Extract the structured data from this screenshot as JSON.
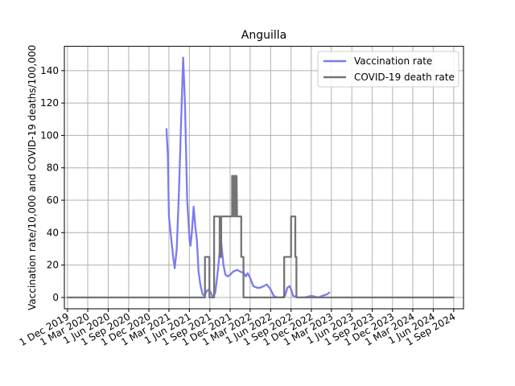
{
  "chart_data": {
    "type": "line",
    "title": "Anguilla",
    "xlabel": "",
    "ylabel": "Vaccination rate/10,000 and COVID-19 deaths/100,000",
    "xlim": [
      "2019-11-17",
      "2024-10-15"
    ],
    "ylim": [
      -7,
      155
    ],
    "grid": true,
    "legend_position": "top-right",
    "x_ticks": [
      "2019-12-01",
      "2020-03-01",
      "2020-06-01",
      "2020-09-01",
      "2020-12-01",
      "2021-03-01",
      "2021-06-01",
      "2021-09-01",
      "2021-12-01",
      "2022-03-01",
      "2022-06-01",
      "2022-09-01",
      "2022-12-01",
      "2023-03-01",
      "2023-06-01",
      "2023-09-01",
      "2023-12-01",
      "2024-03-01",
      "2024-06-01",
      "2024-09-01"
    ],
    "x_tick_labels": [
      "1 Dec 2019",
      "1 Mar 2020",
      "1 Jun 2020",
      "1 Sep 2020",
      "1 Dec 2020",
      "1 Mar 2021",
      "1 Jun 2021",
      "1 Sep 2021",
      "1 Dec 2021",
      "1 Mar 2022",
      "1 Jun 2022",
      "1 Sep 2022",
      "1 Dec 2022",
      "1 Mar 2023",
      "1 Jun 2023",
      "1 Sep 2023",
      "1 Dec 2023",
      "1 Mar 2024",
      "1 Jun 2024",
      "1 Sep 2024"
    ],
    "y_ticks": [
      0,
      20,
      40,
      60,
      80,
      100,
      120,
      140
    ],
    "series": [
      {
        "name": "Vaccination rate",
        "color": "#7b7bf0",
        "points": [
          [
            "2021-02-18",
            104
          ],
          [
            "2021-02-24",
            88
          ],
          [
            "2021-03-01",
            50
          ],
          [
            "2021-03-10",
            38
          ],
          [
            "2021-03-20",
            25
          ],
          [
            "2021-03-27",
            18
          ],
          [
            "2021-04-05",
            30
          ],
          [
            "2021-04-15",
            65
          ],
          [
            "2021-04-25",
            110
          ],
          [
            "2021-05-04",
            148
          ],
          [
            "2021-05-12",
            120
          ],
          [
            "2021-05-22",
            60
          ],
          [
            "2021-06-02",
            35
          ],
          [
            "2021-06-06",
            32
          ],
          [
            "2021-06-12",
            40
          ],
          [
            "2021-06-20",
            56
          ],
          [
            "2021-06-28",
            43
          ],
          [
            "2021-07-05",
            35
          ],
          [
            "2021-07-12",
            16
          ],
          [
            "2021-07-20",
            8
          ],
          [
            "2021-07-30",
            2
          ],
          [
            "2021-08-08",
            1
          ],
          [
            "2021-08-18",
            4
          ],
          [
            "2021-08-28",
            5
          ],
          [
            "2021-09-05",
            3
          ],
          [
            "2021-09-15",
            0
          ],
          [
            "2021-09-25",
            3
          ],
          [
            "2021-10-05",
            14
          ],
          [
            "2021-10-15",
            28
          ],
          [
            "2021-10-22",
            34
          ],
          [
            "2021-11-01",
            20
          ],
          [
            "2021-11-10",
            14
          ],
          [
            "2021-11-20",
            13
          ],
          [
            "2021-12-01",
            14
          ],
          [
            "2021-12-15",
            16
          ],
          [
            "2022-01-01",
            17
          ],
          [
            "2022-01-15",
            16
          ],
          [
            "2022-02-01",
            15
          ],
          [
            "2022-02-10",
            13
          ],
          [
            "2022-02-18",
            15
          ],
          [
            "2022-03-01",
            12
          ],
          [
            "2022-03-15",
            7
          ],
          [
            "2022-04-01",
            6
          ],
          [
            "2022-04-15",
            6
          ],
          [
            "2022-05-01",
            7
          ],
          [
            "2022-05-15",
            8
          ],
          [
            "2022-06-01",
            5
          ],
          [
            "2022-06-15",
            1
          ],
          [
            "2022-07-01",
            0
          ],
          [
            "2022-07-20",
            0
          ],
          [
            "2022-08-05",
            1
          ],
          [
            "2022-08-15",
            6
          ],
          [
            "2022-08-25",
            7
          ],
          [
            "2022-09-01",
            5
          ],
          [
            "2022-09-10",
            1
          ],
          [
            "2022-10-01",
            0
          ],
          [
            "2022-11-01",
            0
          ],
          [
            "2022-12-01",
            1
          ],
          [
            "2023-01-01",
            0
          ],
          [
            "2023-01-20",
            1
          ],
          [
            "2023-02-10",
            2
          ],
          [
            "2023-02-20",
            3
          ]
        ]
      },
      {
        "name": "COVID-19 death rate",
        "color": "#747474",
        "points": [
          [
            "2019-12-01",
            0
          ],
          [
            "2021-08-10",
            0
          ],
          [
            "2021-08-10",
            25
          ],
          [
            "2021-08-30",
            25
          ],
          [
            "2021-08-30",
            0
          ],
          [
            "2021-09-20",
            0
          ],
          [
            "2021-09-20",
            50
          ],
          [
            "2021-10-15",
            50
          ],
          [
            "2021-10-15",
            25
          ],
          [
            "2021-10-22",
            25
          ],
          [
            "2021-10-22",
            50
          ],
          [
            "2021-12-10",
            50
          ],
          [
            "2021-12-10",
            75
          ],
          [
            "2021-12-12",
            50
          ],
          [
            "2021-12-14",
            75
          ],
          [
            "2021-12-16",
            50
          ],
          [
            "2021-12-18",
            75
          ],
          [
            "2021-12-20",
            50
          ],
          [
            "2021-12-22",
            75
          ],
          [
            "2021-12-24",
            50
          ],
          [
            "2021-12-26",
            75
          ],
          [
            "2021-12-28",
            50
          ],
          [
            "2021-12-30",
            75
          ],
          [
            "2022-01-01",
            50
          ],
          [
            "2022-01-20",
            50
          ],
          [
            "2022-01-20",
            25
          ],
          [
            "2022-01-30",
            25
          ],
          [
            "2022-01-30",
            0
          ],
          [
            "2022-08-01",
            0
          ],
          [
            "2022-08-01",
            25
          ],
          [
            "2022-09-01",
            25
          ],
          [
            "2022-09-01",
            50
          ],
          [
            "2022-09-20",
            50
          ],
          [
            "2022-09-20",
            25
          ],
          [
            "2022-09-25",
            25
          ],
          [
            "2022-09-25",
            0
          ],
          [
            "2024-09-01",
            0
          ]
        ]
      }
    ]
  }
}
